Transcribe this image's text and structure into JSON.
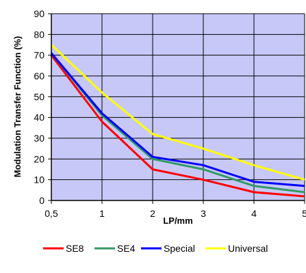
{
  "chart_data": {
    "type": "line",
    "title": "",
    "xlabel": "LP/mm",
    "ylabel": "Modulation Transfer Function (%)",
    "categories": [
      "0,5",
      "1",
      "2",
      "3",
      "4",
      "5"
    ],
    "ylim": [
      0,
      90
    ],
    "yticks": [
      0,
      10,
      20,
      30,
      40,
      50,
      60,
      70,
      80,
      90
    ],
    "grid": true,
    "legend_position": "bottom",
    "plot_background": "#c8c8f8",
    "series": [
      {
        "name": "SE8",
        "color": "#ff0000",
        "values": [
          70,
          38,
          15,
          10,
          4,
          2
        ]
      },
      {
        "name": "SE4",
        "color": "#339966",
        "values": [
          71,
          41,
          20,
          15,
          7,
          4
        ]
      },
      {
        "name": "Special",
        "color": "#0000ff",
        "values": [
          71,
          42,
          21,
          17,
          9,
          7
        ]
      },
      {
        "name": "Universal",
        "color": "#ffff00",
        "values": [
          75,
          52,
          32,
          25,
          17,
          10
        ]
      }
    ]
  }
}
